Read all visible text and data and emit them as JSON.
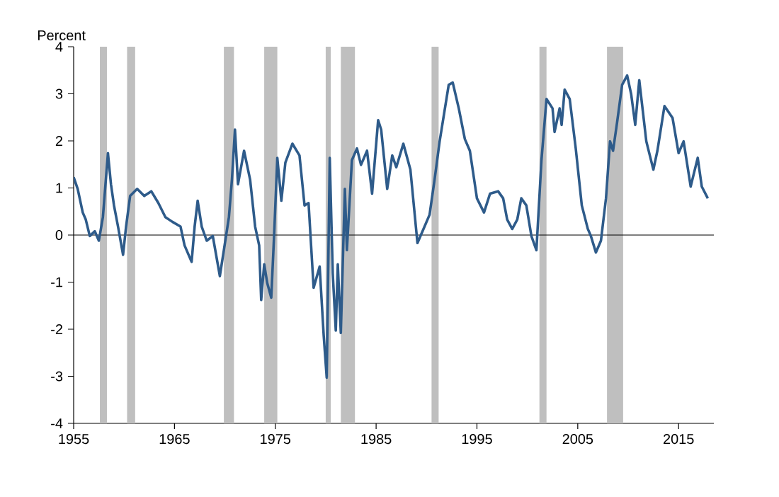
{
  "chart_data": {
    "type": "line",
    "ylabel": "Percent",
    "xlim": [
      1955,
      2018.5
    ],
    "ylim": [
      -4,
      4
    ],
    "xticks": [
      1955,
      1965,
      1975,
      1985,
      1995,
      2005,
      2015
    ],
    "yticks": [
      -4,
      -3,
      -2,
      -1,
      0,
      1,
      2,
      3,
      4
    ],
    "grid": false,
    "marker": "none",
    "line_style": "solid",
    "ref_lines": [
      {
        "axis": "y",
        "value": 0,
        "color": "#000000"
      }
    ],
    "bands": [
      {
        "axis": "x",
        "from": 1957.6,
        "to": 1958.3,
        "color": "#bfbfbf"
      },
      {
        "axis": "x",
        "from": 1960.3,
        "to": 1961.1,
        "color": "#bfbfbf"
      },
      {
        "axis": "x",
        "from": 1969.9,
        "to": 1970.9,
        "color": "#bfbfbf"
      },
      {
        "axis": "x",
        "from": 1973.9,
        "to": 1975.2,
        "color": "#bfbfbf"
      },
      {
        "axis": "x",
        "from": 1980.0,
        "to": 1980.5,
        "color": "#bfbfbf"
      },
      {
        "axis": "x",
        "from": 1981.5,
        "to": 1982.9,
        "color": "#bfbfbf"
      },
      {
        "axis": "x",
        "from": 1990.5,
        "to": 1991.2,
        "color": "#bfbfbf"
      },
      {
        "axis": "x",
        "from": 2001.2,
        "to": 2001.9,
        "color": "#bfbfbf"
      },
      {
        "axis": "x",
        "from": 2007.9,
        "to": 2009.5,
        "color": "#bfbfbf"
      }
    ],
    "series": [
      {
        "color": "#2e5b8a",
        "x": [
          1955.0,
          1955.4,
          1955.9,
          1956.2,
          1956.6,
          1957.1,
          1957.5,
          1957.9,
          1958.4,
          1958.7,
          1959.0,
          1959.4,
          1959.9,
          1960.2,
          1960.6,
          1961.3,
          1962.0,
          1962.7,
          1963.4,
          1964.1,
          1964.8,
          1965.6,
          1966.0,
          1966.7,
          1967.0,
          1967.3,
          1967.7,
          1968.2,
          1968.8,
          1969.5,
          1969.9,
          1970.4,
          1970.7,
          1971.0,
          1971.3,
          1971.9,
          1972.5,
          1973.0,
          1973.4,
          1973.6,
          1973.9,
          1974.2,
          1974.6,
          1974.9,
          1975.2,
          1975.6,
          1976.0,
          1976.7,
          1977.4,
          1977.9,
          1978.3,
          1978.8,
          1979.4,
          1979.8,
          1980.1,
          1980.4,
          1980.7,
          1981.0,
          1981.2,
          1981.5,
          1981.9,
          1982.1,
          1982.6,
          1983.1,
          1983.5,
          1984.1,
          1984.6,
          1985.2,
          1985.5,
          1986.1,
          1986.6,
          1987.0,
          1987.7,
          1988.4,
          1989.1,
          1989.6,
          1990.3,
          1990.8,
          1991.3,
          1992.2,
          1992.6,
          1993.2,
          1993.8,
          1994.3,
          1995.0,
          1995.7,
          1996.3,
          1997.1,
          1997.6,
          1998.0,
          1998.5,
          1999.0,
          1999.4,
          1999.9,
          2000.4,
          2000.9,
          2001.4,
          2001.9,
          2002.5,
          2002.7,
          2003.2,
          2003.4,
          2003.7,
          2004.2,
          2004.8,
          2005.4,
          2006.0,
          2006.3,
          2006.8,
          2007.3,
          2007.8,
          2008.2,
          2008.5,
          2008.9,
          2009.4,
          2009.9,
          2010.3,
          2010.7,
          2011.1,
          2011.8,
          2012.5,
          2012.9,
          2013.6,
          2014.4,
          2015.0,
          2015.5,
          2016.2,
          2016.9,
          2017.3,
          2017.9
        ],
        "values": [
          1.23,
          0.98,
          0.48,
          0.33,
          -0.02,
          0.08,
          -0.12,
          0.38,
          1.74,
          1.08,
          0.63,
          0.18,
          -0.42,
          0.18,
          0.83,
          0.98,
          0.83,
          0.93,
          0.68,
          0.38,
          0.28,
          0.18,
          -0.22,
          -0.57,
          0.18,
          0.73,
          0.18,
          -0.12,
          -0.02,
          -0.87,
          -0.32,
          0.38,
          1.18,
          2.24,
          1.08,
          1.79,
          1.18,
          0.18,
          -0.22,
          -1.38,
          -0.62,
          -1.02,
          -1.33,
          0.08,
          1.64,
          0.73,
          1.54,
          1.94,
          1.69,
          0.63,
          0.68,
          -1.12,
          -0.67,
          -2.13,
          -3.03,
          1.64,
          -0.82,
          -2.03,
          -0.62,
          -2.08,
          0.98,
          -0.32,
          1.59,
          1.84,
          1.49,
          1.79,
          0.88,
          2.44,
          2.24,
          0.98,
          1.69,
          1.44,
          1.94,
          1.39,
          -0.17,
          0.08,
          0.43,
          1.18,
          1.99,
          3.19,
          3.24,
          2.69,
          2.04,
          1.79,
          0.78,
          0.48,
          0.88,
          0.93,
          0.78,
          0.33,
          0.13,
          0.33,
          0.78,
          0.63,
          -0.02,
          -0.32,
          1.59,
          2.89,
          2.69,
          2.19,
          2.69,
          2.34,
          3.09,
          2.89,
          1.84,
          0.63,
          0.13,
          -0.02,
          -0.37,
          -0.12,
          0.78,
          1.99,
          1.79,
          2.39,
          3.19,
          3.39,
          2.99,
          2.34,
          3.29,
          1.99,
          1.39,
          1.79,
          2.74,
          2.49,
          1.74,
          1.99,
          1.03,
          1.64,
          1.03,
          0.78
        ]
      }
    ]
  }
}
